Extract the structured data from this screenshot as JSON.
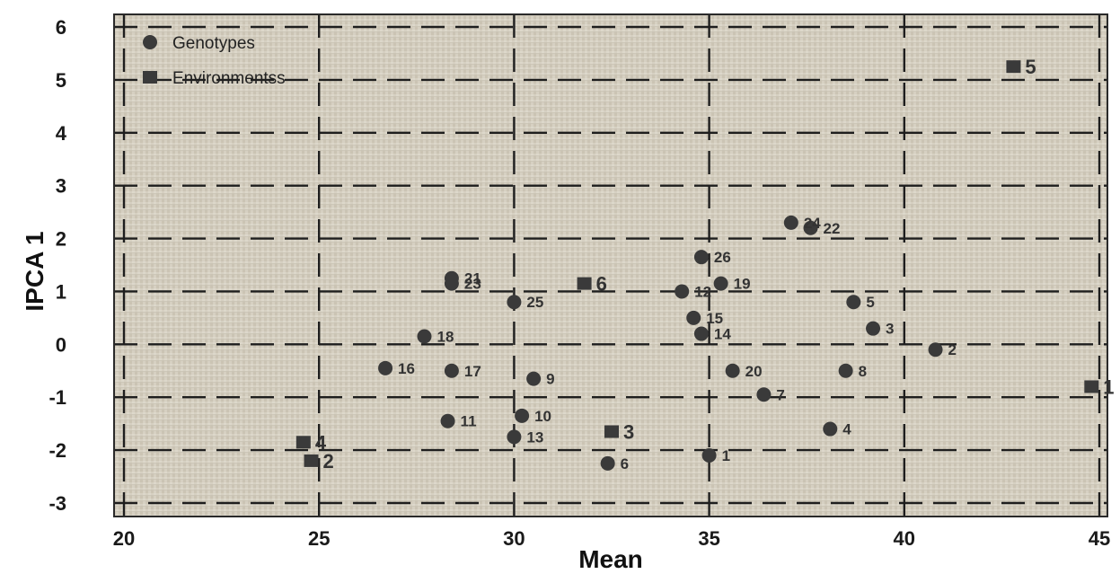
{
  "chart_data": {
    "type": "scatter",
    "xlabel": "Mean",
    "ylabel": "IPCA 1",
    "xlim": [
      20,
      45
    ],
    "ylim": [
      -3,
      6
    ],
    "x_ticks": [
      "20",
      "25",
      "30",
      "35",
      "40",
      "45"
    ],
    "y_ticks": [
      "6",
      "5",
      "4",
      "3",
      "2",
      "1",
      "0",
      "-1",
      "-2",
      "-3"
    ],
    "grid": true,
    "legend_position": "top-left",
    "series": [
      {
        "name": "Genotypes",
        "marker": "circle",
        "color": "#3a3a3a",
        "points": [
          {
            "label": "1",
            "x": 35.0,
            "y": -2.1
          },
          {
            "label": "2",
            "x": 40.8,
            "y": -0.1
          },
          {
            "label": "3",
            "x": 39.2,
            "y": 0.3
          },
          {
            "label": "4",
            "x": 38.1,
            "y": -1.6
          },
          {
            "label": "5",
            "x": 38.7,
            "y": 0.8
          },
          {
            "label": "6",
            "x": 32.4,
            "y": -2.25
          },
          {
            "label": "7",
            "x": 36.4,
            "y": -0.95
          },
          {
            "label": "8",
            "x": 38.5,
            "y": -0.5
          },
          {
            "label": "9",
            "x": 30.5,
            "y": -0.65
          },
          {
            "label": "10",
            "x": 30.2,
            "y": -1.35
          },
          {
            "label": "11",
            "x": 28.3,
            "y": -1.45
          },
          {
            "label": "12",
            "x": 34.3,
            "y": 1.0
          },
          {
            "label": "13",
            "x": 30.0,
            "y": -1.75
          },
          {
            "label": "14",
            "x": 34.8,
            "y": 0.2
          },
          {
            "label": "15",
            "x": 34.6,
            "y": 0.5
          },
          {
            "label": "16",
            "x": 26.7,
            "y": -0.45
          },
          {
            "label": "17",
            "x": 28.4,
            "y": -0.5
          },
          {
            "label": "18",
            "x": 27.7,
            "y": 0.15
          },
          {
            "label": "19",
            "x": 35.3,
            "y": 1.15
          },
          {
            "label": "20",
            "x": 35.6,
            "y": -0.5
          },
          {
            "label": "21",
            "x": 28.4,
            "y": 1.25
          },
          {
            "label": "22",
            "x": 37.6,
            "y": 2.2
          },
          {
            "label": "23",
            "x": 28.4,
            "y": 1.15
          },
          {
            "label": "24",
            "x": 37.1,
            "y": 2.3
          },
          {
            "label": "25",
            "x": 30.0,
            "y": 0.8
          },
          {
            "label": "26",
            "x": 34.8,
            "y": 1.65
          }
        ]
      },
      {
        "name": "Environmentss",
        "marker": "square",
        "color": "#3a3a3a",
        "points": [
          {
            "label": "1",
            "x": 44.8,
            "y": -0.8
          },
          {
            "label": "2",
            "x": 24.8,
            "y": -2.2
          },
          {
            "label": "3",
            "x": 32.5,
            "y": -1.65
          },
          {
            "label": "4",
            "x": 24.6,
            "y": -1.85
          },
          {
            "label": "5",
            "x": 42.8,
            "y": 5.25
          },
          {
            "label": "6",
            "x": 31.8,
            "y": 1.15
          }
        ]
      }
    ]
  }
}
